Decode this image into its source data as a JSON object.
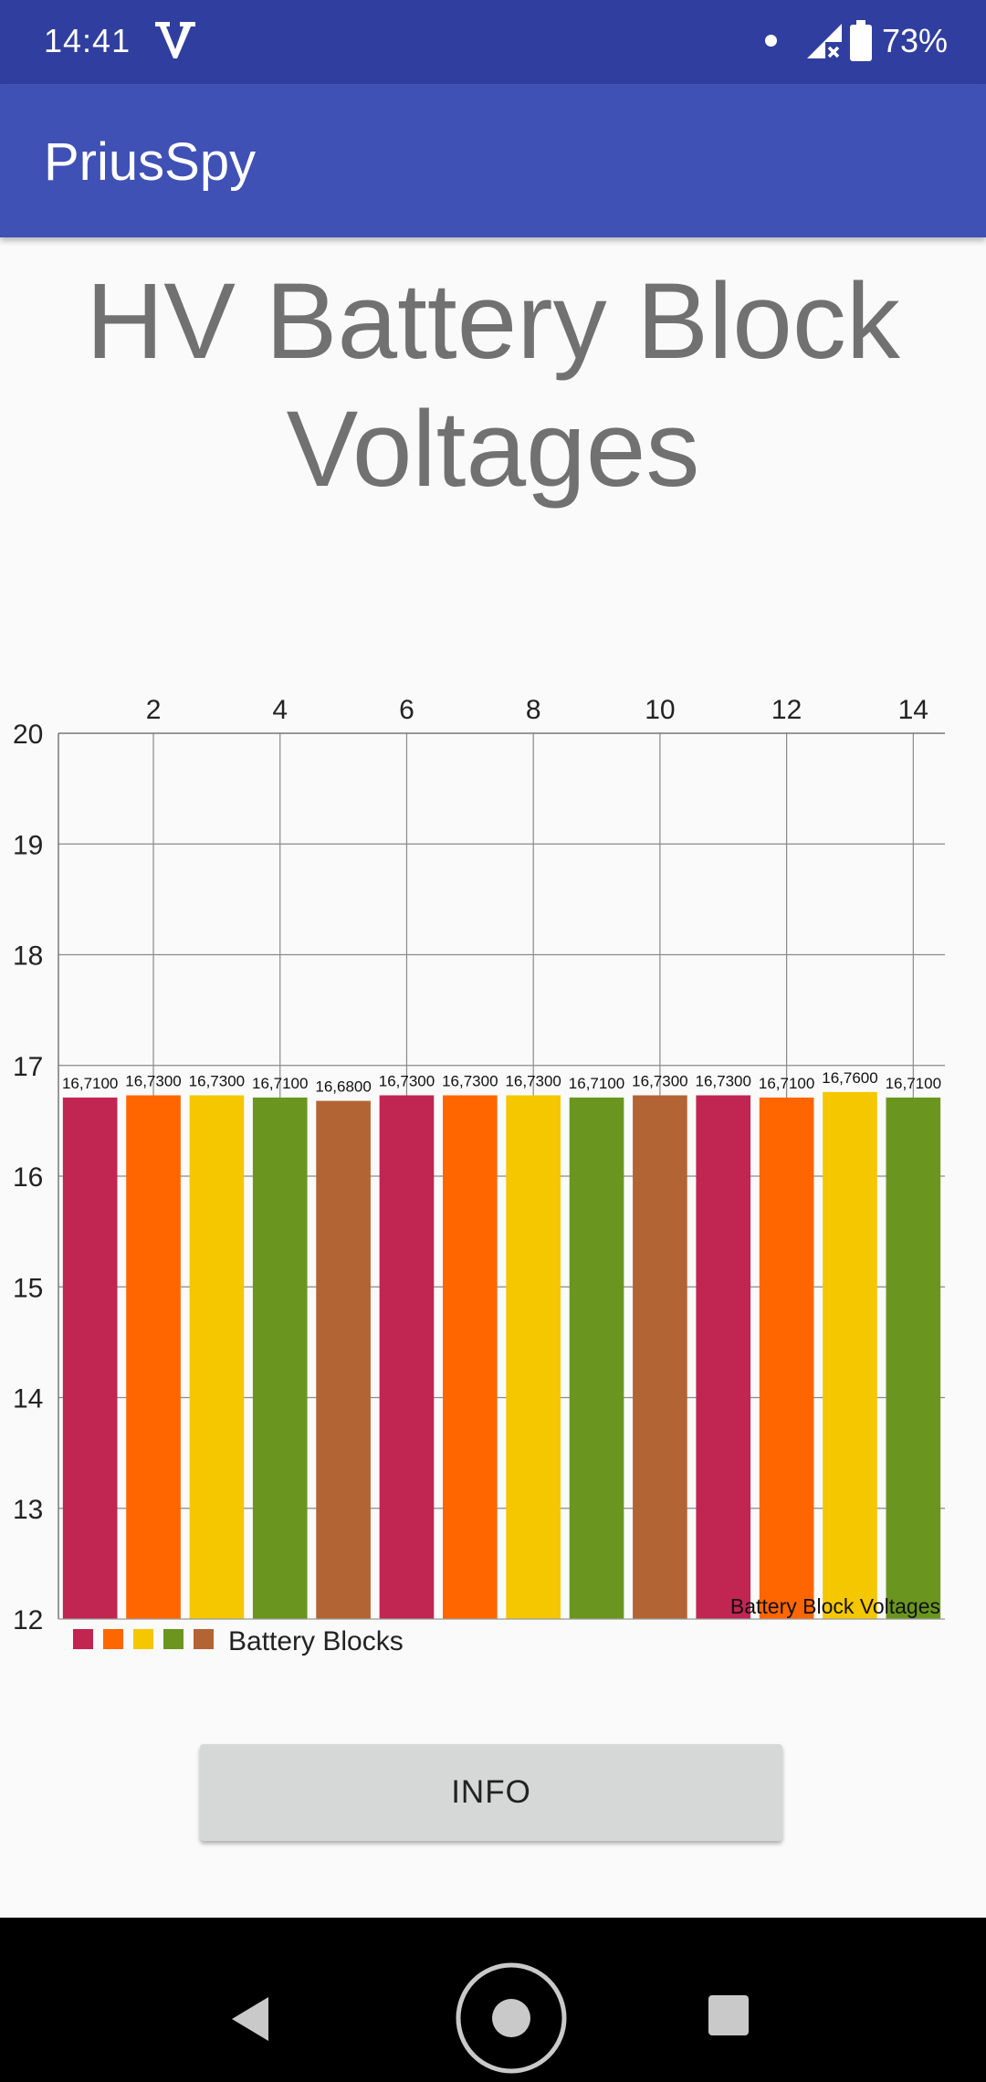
{
  "status_bar": {
    "time": "14:41",
    "carrier_icon": "v-logo-icon",
    "battery_percent": "73%",
    "icons": [
      "notification-dot-icon",
      "signal-no-data-icon",
      "battery-icon"
    ]
  },
  "app_bar": {
    "title": "PriusSpy",
    "color": "#3f51b5"
  },
  "page_title": "HV Battery Block Voltages",
  "chart_data": {
    "type": "bar",
    "categories": [
      1,
      2,
      3,
      4,
      5,
      6,
      7,
      8,
      9,
      10,
      11,
      12,
      13,
      14
    ],
    "x_tick_labels": [
      "2",
      "4",
      "6",
      "8",
      "10",
      "12",
      "14"
    ],
    "values": [
      16.71,
      16.73,
      16.73,
      16.71,
      16.68,
      16.73,
      16.73,
      16.73,
      16.71,
      16.73,
      16.73,
      16.71,
      16.76,
      16.71
    ],
    "value_labels": [
      "16,7100",
      "16,7300",
      "16,7300",
      "16,7100",
      "16,6800",
      "16,7300",
      "16,7300",
      "16,7300",
      "16,7100",
      "16,7300",
      "16,7300",
      "16,7100",
      "16,7600",
      "16,7100"
    ],
    "y_tick_labels": [
      "12",
      "13",
      "14",
      "15",
      "16",
      "17",
      "18",
      "19",
      "20"
    ],
    "ylim": [
      12,
      20
    ],
    "colors": [
      "#c12552",
      "#ff6600",
      "#f5c700",
      "#6a961f",
      "#b36434"
    ],
    "legend": {
      "label": "Battery Blocks",
      "position": "bottom-left"
    },
    "description": "Battery Block Voltages",
    "grid": true,
    "x_axis_position": "top"
  },
  "info_button": {
    "label": "INFO"
  },
  "nav_bar": {
    "icons": [
      "back-icon",
      "home-icon",
      "recents-icon"
    ]
  }
}
